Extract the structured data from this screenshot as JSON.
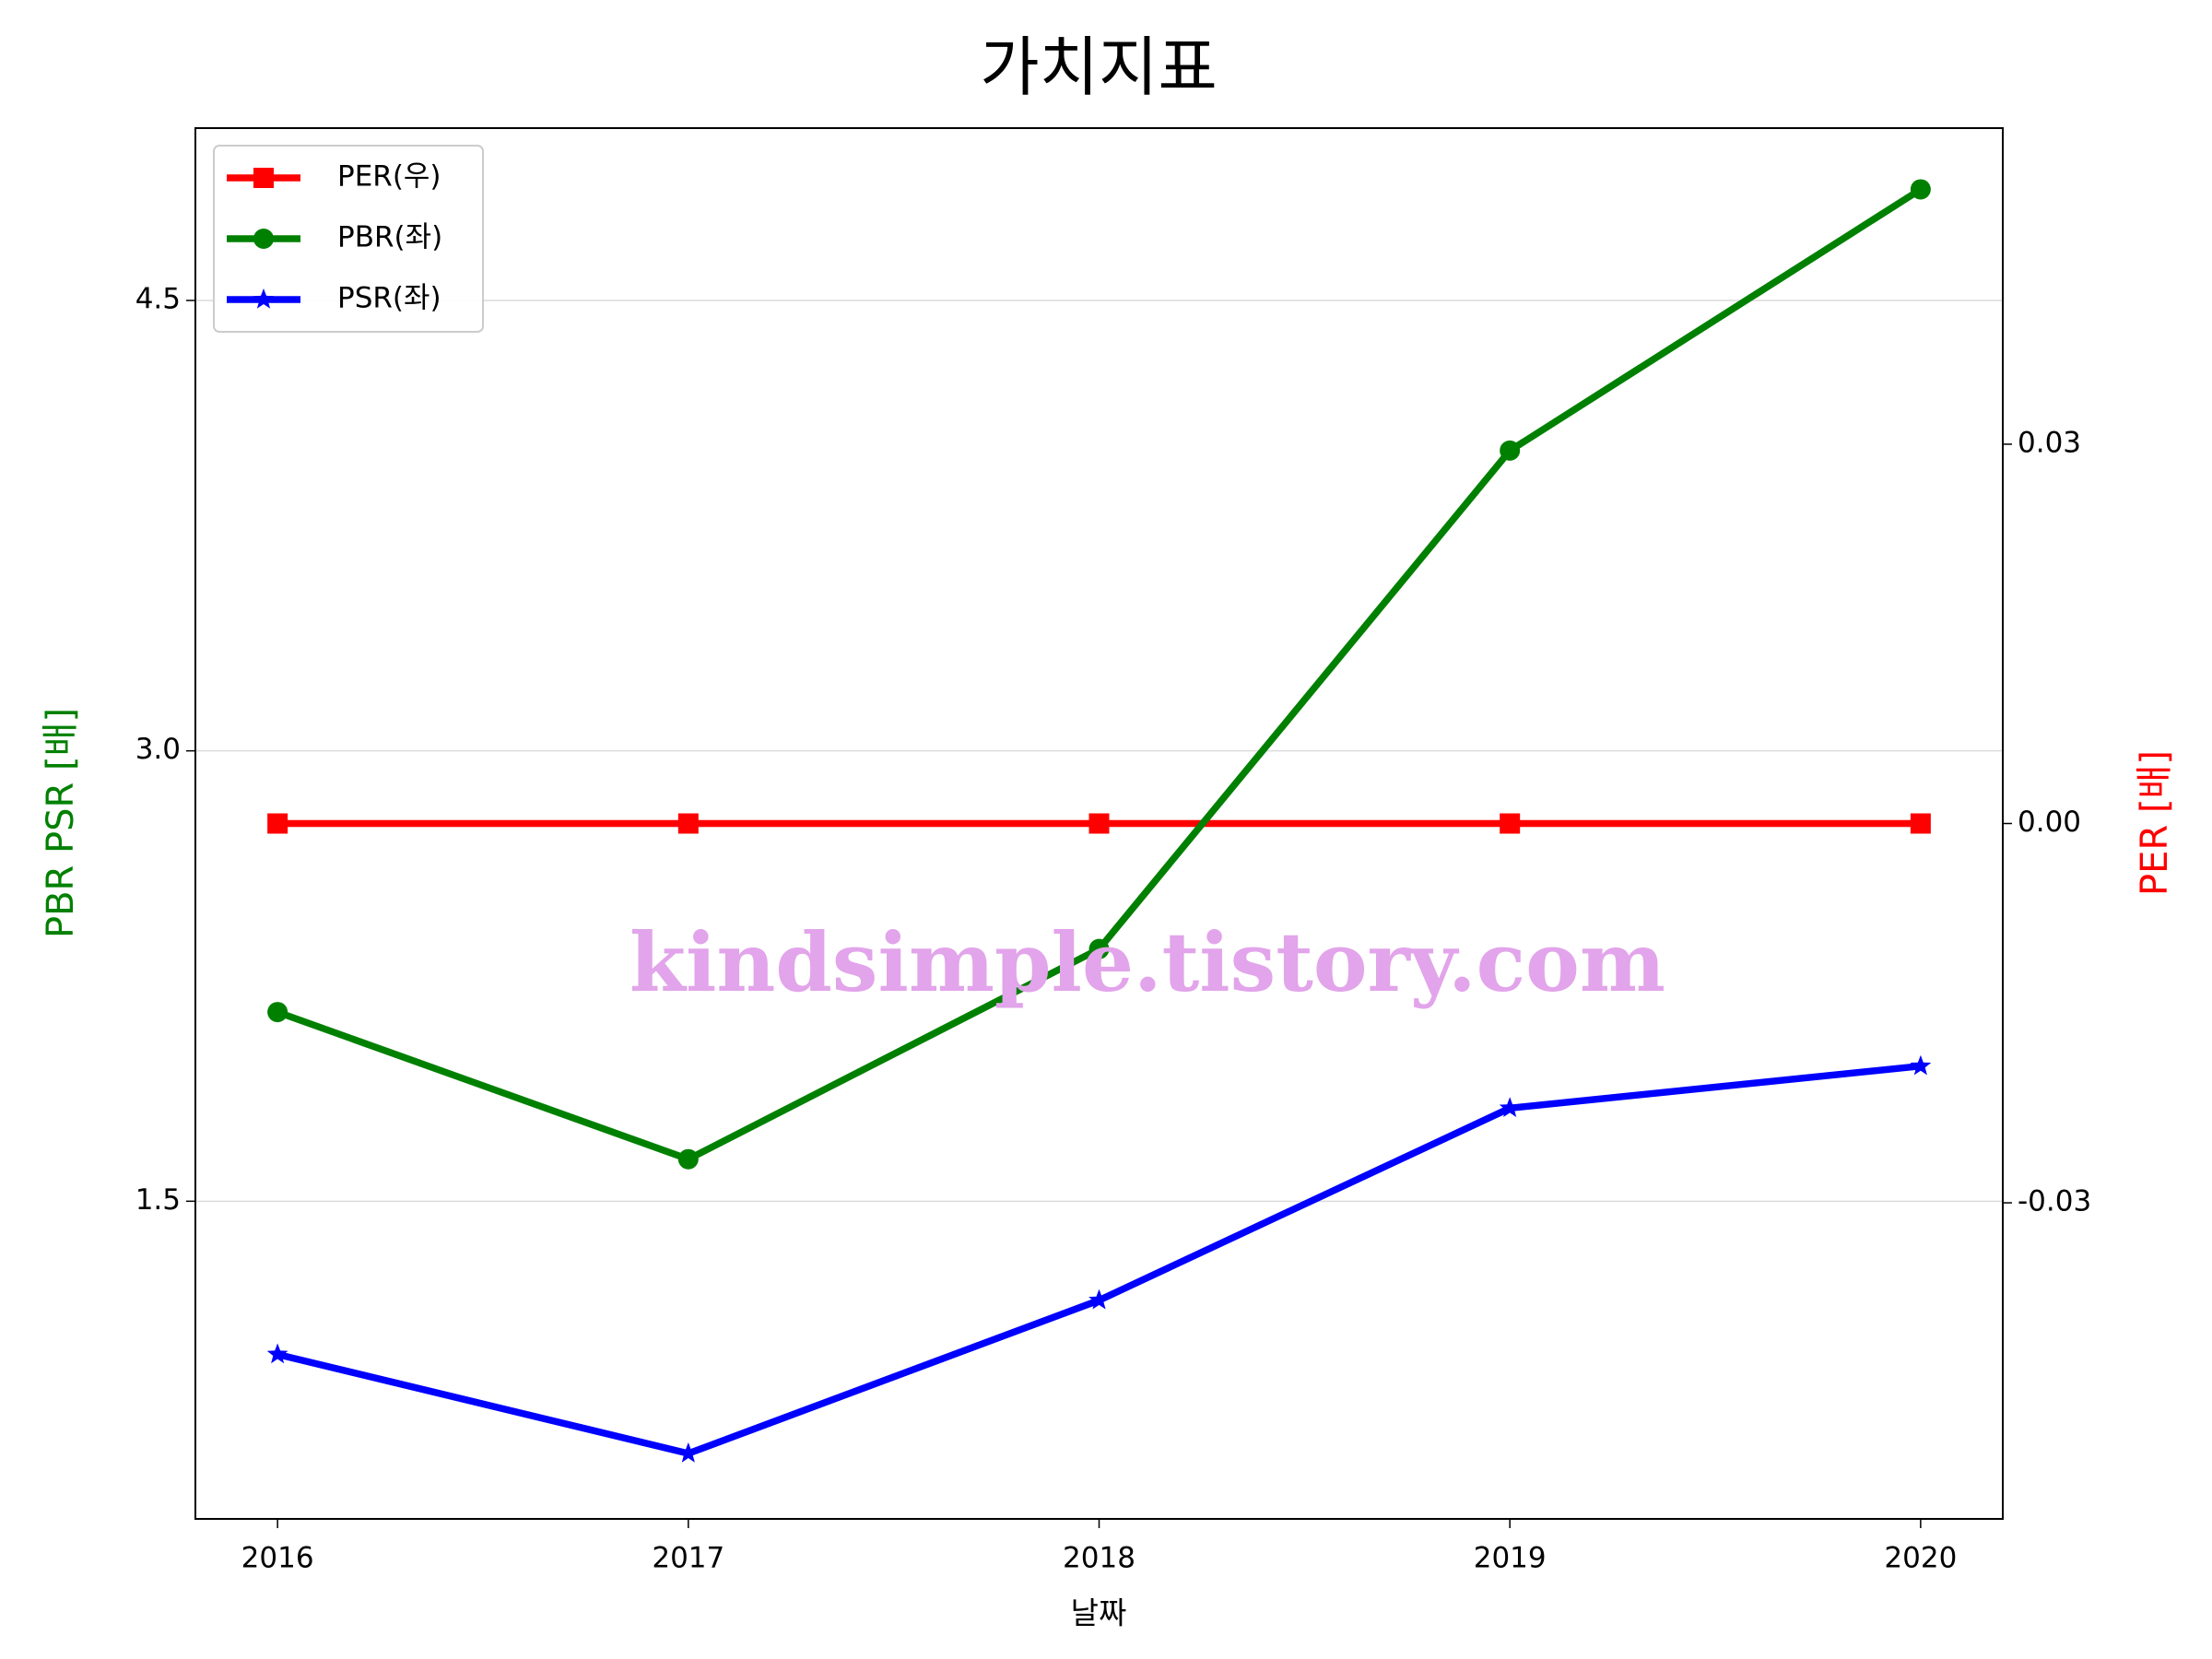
{
  "chart_data": {
    "type": "line",
    "title": "가치지표",
    "xlabel": "날짜",
    "ylabel": "PBR PSR [배]",
    "y2label": "PER [배]",
    "ylabel_color": "green",
    "y2label_color": "red",
    "watermark": "kindsimple.tistory.com",
    "categories": [
      "2016",
      "2017",
      "2018",
      "2019",
      "2020"
    ],
    "series": [
      {
        "name": "PER(우)",
        "color": "red",
        "marker": "square",
        "axis": "y2",
        "values": [
          0,
          0,
          0,
          0,
          0
        ]
      },
      {
        "name": "PBR(좌)",
        "color": "green",
        "marker": "circle",
        "values": [
          2.13,
          1.64,
          2.34,
          4.0,
          4.87
        ]
      },
      {
        "name": "PSR(좌)",
        "color": "blue",
        "marker": "star",
        "values": [
          0.99,
          0.66,
          1.17,
          1.81,
          1.95
        ]
      }
    ],
    "ylim": [
      0.442,
      5.074
    ],
    "yticks": [
      1.5,
      {
        "value": 3,
        "label": "3.0"
      },
      4.5
    ],
    "y2lim": [
      -0.055,
      0.055
    ],
    "y2ticks": [
      -0.03,
      {
        "value": 0,
        "label": "0.00"
      },
      0.03
    ],
    "grid": true,
    "legend": "upper left"
  }
}
